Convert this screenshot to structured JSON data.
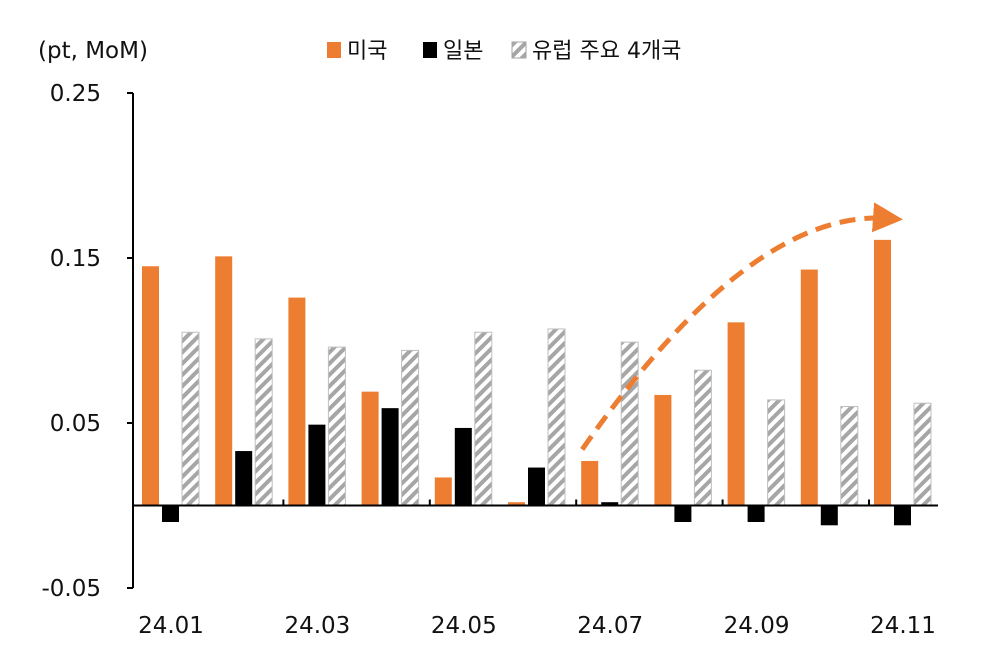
{
  "chart_data": {
    "type": "bar",
    "ylabel": "(pt, MoM)",
    "ylim": [
      -0.05,
      0.25
    ],
    "ytick_labels": [
      "0.25",
      "0.15",
      "0.05",
      "-0.05"
    ],
    "ytick_values": [
      0.25,
      0.15,
      0.05,
      -0.05
    ],
    "categories": [
      "24.01",
      "24.02",
      "24.03",
      "24.04",
      "24.05",
      "24.06",
      "24.07",
      "24.08",
      "24.09",
      "24.10",
      "24.11"
    ],
    "xtick_labels": [
      "24.01",
      "24.03",
      "24.05",
      "24.07",
      "24.09",
      "24.11"
    ],
    "xtick_values": [
      "24.01",
      "24.03",
      "24.05",
      "24.07",
      "24.09",
      "24.11"
    ],
    "legend_position": "top",
    "series": [
      {
        "name": "미국",
        "color": "#ED7D31",
        "pattern": "solid",
        "values": [
          0.145,
          0.151,
          0.126,
          0.069,
          0.017,
          0.002,
          0.027,
          0.067,
          0.111,
          0.143,
          0.161
        ]
      },
      {
        "name": "일본",
        "color": "#000000",
        "pattern": "solid",
        "values": [
          -0.01,
          0.033,
          0.049,
          0.059,
          0.047,
          0.023,
          0.002,
          -0.01,
          -0.01,
          -0.012,
          -0.012
        ]
      },
      {
        "name": "유럽 주요 4개국",
        "color": "#A6A6A6",
        "pattern": "diagonal-hatch",
        "values": [
          0.105,
          0.101,
          0.096,
          0.094,
          0.105,
          0.107,
          0.099,
          0.082,
          0.064,
          0.06,
          0.062
        ]
      }
    ],
    "trend_arrow": {
      "color": "#ED7D31",
      "style": "dashed",
      "from": "24.07",
      "to": "24.11"
    }
  }
}
